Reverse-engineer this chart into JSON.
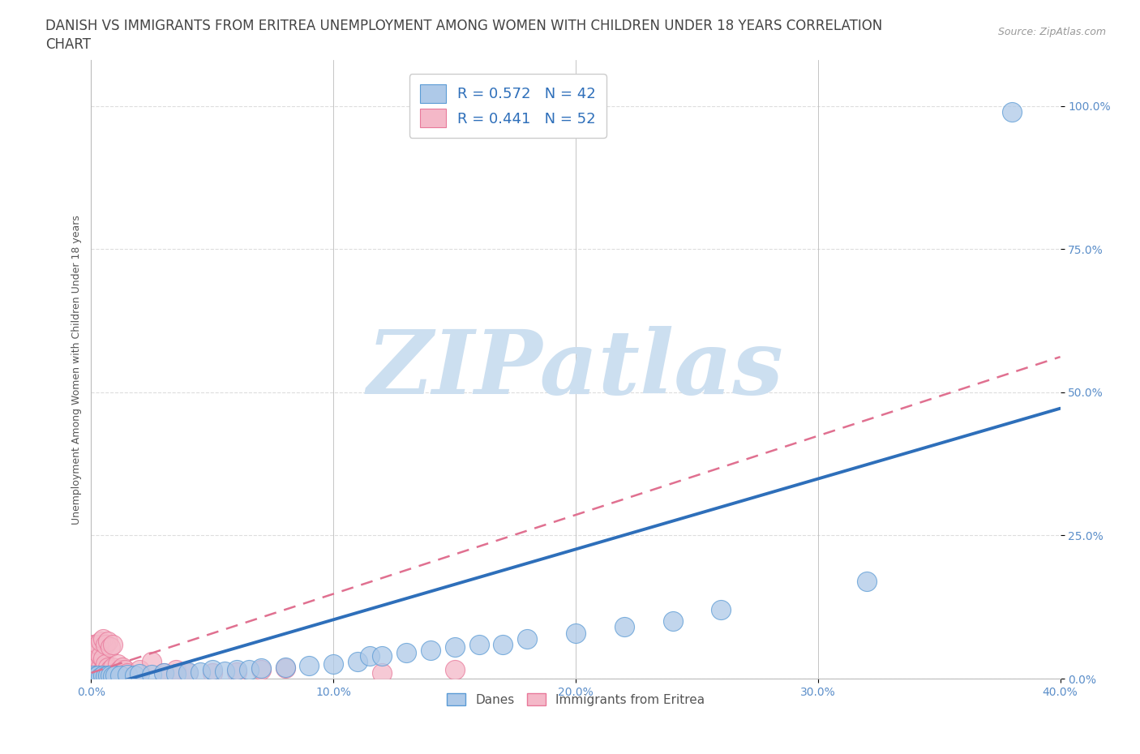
{
  "title_line1": "DANISH VS IMMIGRANTS FROM ERITREA UNEMPLOYMENT AMONG WOMEN WITH CHILDREN UNDER 18 YEARS CORRELATION",
  "title_line2": "CHART",
  "source": "Source: ZipAtlas.com",
  "ylabel": "Unemployment Among Women with Children Under 18 years",
  "xlim": [
    0.0,
    0.4
  ],
  "ylim": [
    0.0,
    1.08
  ],
  "xticks": [
    0.0,
    0.1,
    0.2,
    0.3,
    0.4
  ],
  "yticks": [
    0.0,
    0.25,
    0.5,
    0.75,
    1.0
  ],
  "xtick_labels": [
    "0.0%",
    "10.0%",
    "20.0%",
    "30.0%",
    "40.0%"
  ],
  "ytick_labels": [
    "0.0%",
    "25.0%",
    "50.0%",
    "75.0%",
    "100.0%"
  ],
  "danes_color": "#aec9e8",
  "danes_edge_color": "#5b9bd5",
  "eritrea_color": "#f4b8c8",
  "eritrea_edge_color": "#e8799a",
  "danes_line_color": "#2e6fba",
  "eritrea_line_color": "#e07090",
  "danes_R": 0.572,
  "danes_N": 42,
  "eritrea_R": 0.441,
  "eritrea_N": 52,
  "legend_R_color": "#2e6fba",
  "watermark": "ZIPatlas",
  "watermark_color": "#ccdff0",
  "danes_x": [
    0.001,
    0.002,
    0.003,
    0.004,
    0.005,
    0.006,
    0.007,
    0.008,
    0.009,
    0.01,
    0.012,
    0.015,
    0.018,
    0.02,
    0.025,
    0.03,
    0.035,
    0.04,
    0.045,
    0.05,
    0.055,
    0.06,
    0.065,
    0.07,
    0.08,
    0.09,
    0.1,
    0.11,
    0.115,
    0.12,
    0.13,
    0.14,
    0.15,
    0.16,
    0.17,
    0.18,
    0.2,
    0.22,
    0.24,
    0.26,
    0.32,
    0.38
  ],
  "danes_y": [
    0.005,
    0.004,
    0.005,
    0.003,
    0.005,
    0.004,
    0.006,
    0.005,
    0.004,
    0.005,
    0.006,
    0.007,
    0.006,
    0.008,
    0.007,
    0.01,
    0.009,
    0.012,
    0.012,
    0.015,
    0.013,
    0.015,
    0.015,
    0.018,
    0.02,
    0.022,
    0.025,
    0.03,
    0.04,
    0.04,
    0.045,
    0.05,
    0.055,
    0.06,
    0.06,
    0.07,
    0.08,
    0.09,
    0.1,
    0.12,
    0.17,
    0.99
  ],
  "eritrea_x": [
    0.001,
    0.001,
    0.001,
    0.001,
    0.001,
    0.001,
    0.001,
    0.001,
    0.001,
    0.001,
    0.001,
    0.002,
    0.002,
    0.002,
    0.002,
    0.002,
    0.002,
    0.003,
    0.003,
    0.003,
    0.003,
    0.004,
    0.004,
    0.004,
    0.005,
    0.005,
    0.005,
    0.006,
    0.006,
    0.007,
    0.007,
    0.008,
    0.008,
    0.009,
    0.009,
    0.01,
    0.011,
    0.012,
    0.013,
    0.014,
    0.015,
    0.02,
    0.025,
    0.03,
    0.035,
    0.04,
    0.05,
    0.06,
    0.07,
    0.08,
    0.12,
    0.15
  ],
  "eritrea_y": [
    0.01,
    0.012,
    0.015,
    0.018,
    0.02,
    0.025,
    0.03,
    0.035,
    0.04,
    0.05,
    0.06,
    0.015,
    0.02,
    0.025,
    0.035,
    0.045,
    0.06,
    0.02,
    0.03,
    0.045,
    0.06,
    0.02,
    0.04,
    0.065,
    0.015,
    0.035,
    0.07,
    0.025,
    0.06,
    0.02,
    0.065,
    0.015,
    0.055,
    0.02,
    0.06,
    0.01,
    0.025,
    0.015,
    0.02,
    0.015,
    0.01,
    0.015,
    0.03,
    0.01,
    0.015,
    0.01,
    0.01,
    0.012,
    0.015,
    0.018,
    0.01,
    0.015
  ],
  "background_color": "#ffffff",
  "grid_color": "#dddddd",
  "title_fontsize": 12,
  "axis_label_fontsize": 9,
  "tick_fontsize": 10
}
